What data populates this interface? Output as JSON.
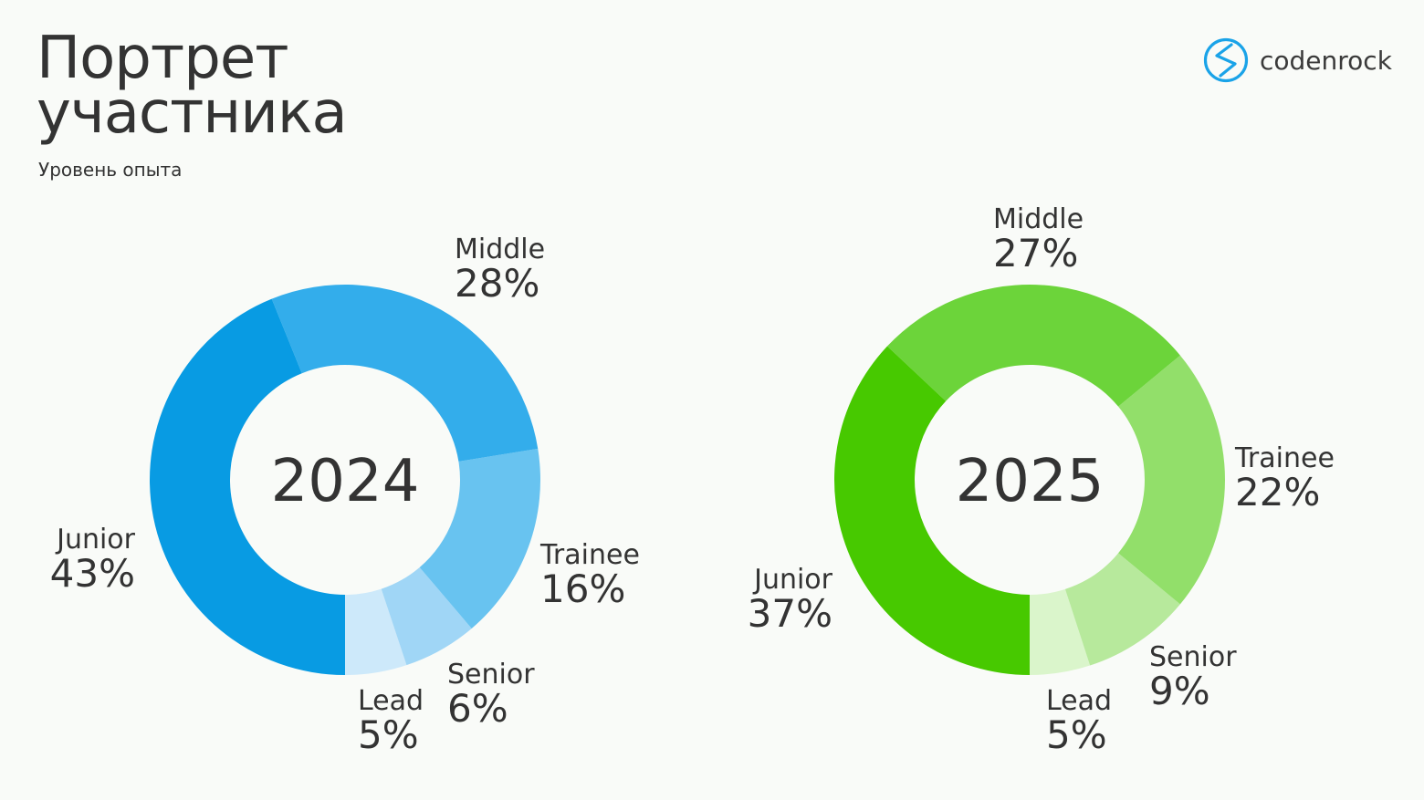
{
  "header": {
    "title_line1": "Портрет",
    "title_line2": "участника",
    "subtitle": "Уровень опыта"
  },
  "logo": {
    "text": "codenrock",
    "icon": "codenrock-logo-icon",
    "color": "#1aa3e8"
  },
  "chart_data": [
    {
      "type": "pie",
      "title": "2024",
      "categories": [
        "Lead",
        "Senior",
        "Trainee",
        "Middle",
        "Junior"
      ],
      "values": [
        5,
        6,
        16,
        28,
        43
      ],
      "value_labels": [
        "5%",
        "6%",
        "16%",
        "28%",
        "43%"
      ],
      "colors": [
        "#cde9fa",
        "#a0d6f6",
        "#68c3f0",
        "#33adeb",
        "#089be3"
      ]
    },
    {
      "type": "pie",
      "title": "2025",
      "categories": [
        "Lead",
        "Senior",
        "Trainee",
        "Middle",
        "Junior"
      ],
      "values": [
        5,
        9,
        22,
        27,
        37
      ],
      "value_labels": [
        "5%",
        "9%",
        "22%",
        "27%",
        "37%"
      ],
      "colors": [
        "#daf5cb",
        "#b7e99c",
        "#92df6a",
        "#6cd43a",
        "#47c900"
      ]
    }
  ]
}
